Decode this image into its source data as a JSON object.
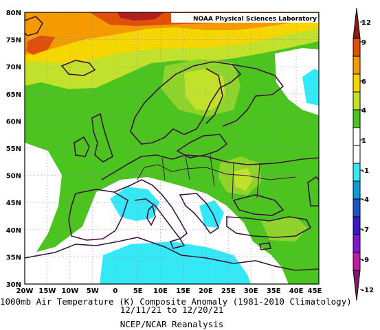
{
  "map": {
    "logo": "NOAA Physical Sciences Laboratory",
    "lat_labels": [
      "80N",
      "75N",
      "70N",
      "65N",
      "60N",
      "55N",
      "50N",
      "45N",
      "40N",
      "35N",
      "30N"
    ],
    "lon_labels": [
      "20W",
      "15W",
      "10W",
      "5W",
      "0",
      "5E",
      "10E",
      "15E",
      "20E",
      "25E",
      "30E",
      "35E",
      "40E",
      "45E"
    ]
  },
  "caption": {
    "title": "1000mb Air Temperature (K) Composite Anomaly (1981-2010 Climatology)",
    "dates": "12/11/21 to 12/20/21",
    "source": "NCEP/NCAR Reanalysis"
  },
  "colorbar": {
    "labels": [
      "12",
      "9",
      "6",
      "4",
      "1",
      "-1",
      "-4",
      "-7",
      "-9",
      "-12"
    ],
    "colors": [
      "#8b1a1a",
      "#e0500a",
      "#f59a00",
      "#f6d600",
      "#c2e12a",
      "#4cc41f",
      "#ffffff",
      "#ffffff",
      "#34e8f5",
      "#0c9bdc",
      "#1a55c8",
      "#3a18c8",
      "#7d18d0",
      "#c01aa8",
      "#7d1a6e"
    ],
    "tick_values": [
      12,
      9,
      6,
      4,
      1,
      -1,
      -4,
      -7,
      -9,
      -12
    ]
  },
  "colors": {
    "green": "#4cc41f",
    "light_green": "#8fd42a",
    "yellow_green": "#c2e12a",
    "yellow": "#f6d600",
    "orange": "#f59a00",
    "dark_orange": "#e0500a",
    "red": "#8b1a1a",
    "cyan": "#34e8f5",
    "white": "#ffffff",
    "coast": "#3c1040"
  }
}
